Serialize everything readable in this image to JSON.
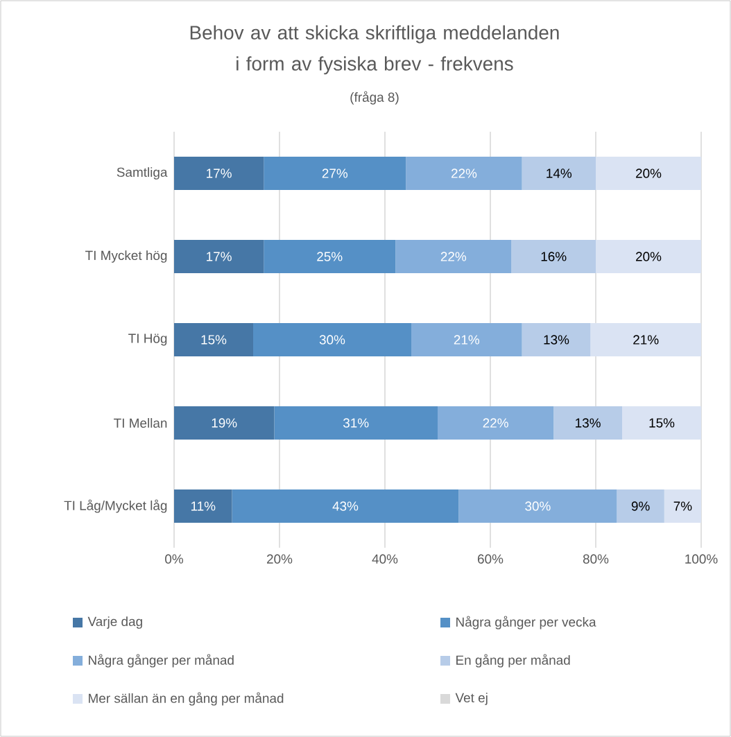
{
  "chart_data": {
    "type": "bar",
    "orientation": "horizontal",
    "stacked": true,
    "title": "Behov av att skicka skriftliga meddelanden i form av fysiska brev - frekvens",
    "subtitle": "(fråga 8)",
    "categories": [
      "Samtliga",
      "TI Mycket hög",
      "TI Hög",
      "TI Mellan",
      "TI Låg/Mycket låg"
    ],
    "series": [
      {
        "name": "Varje dag",
        "color": "#4677a6",
        "values": [
          17,
          17,
          15,
          19,
          11
        ],
        "value_labels": [
          "17%",
          "17%",
          "15%",
          "19%",
          "11%"
        ]
      },
      {
        "name": "Några gånger per vecka",
        "color": "#5590c6",
        "values": [
          27,
          25,
          30,
          31,
          43
        ],
        "value_labels": [
          "27%",
          "25%",
          "30%",
          "31%",
          "43%"
        ]
      },
      {
        "name": "Några gånger per månad",
        "color": "#84aedb",
        "values": [
          22,
          22,
          21,
          22,
          30
        ],
        "value_labels": [
          "22%",
          "22%",
          "21%",
          "22%",
          "30%"
        ]
      },
      {
        "name": "En gång per månad",
        "color": "#b7cce8",
        "values": [
          14,
          16,
          13,
          13,
          9
        ],
        "value_labels": [
          "14%",
          "16%",
          "13%",
          "13%",
          "9%"
        ]
      },
      {
        "name": "Mer sällan än en gång per månad",
        "color": "#dae3f3",
        "values": [
          20,
          20,
          21,
          15,
          7
        ],
        "value_labels": [
          "20%",
          "20%",
          "21%",
          "15%",
          "7%"
        ]
      },
      {
        "name": "Vet ej",
        "color": "#d9d9d9",
        "values": [
          null,
          null,
          null,
          null,
          null
        ]
      }
    ],
    "xlim": [
      0,
      100
    ],
    "xticks": [
      {
        "value": 0,
        "label": "0%"
      },
      {
        "value": 20,
        "label": "20%"
      },
      {
        "value": 40,
        "label": "40%"
      },
      {
        "value": 60,
        "label": "60%"
      },
      {
        "value": 80,
        "label": "80%"
      },
      {
        "value": 100,
        "label": "100%"
      }
    ],
    "grid": "x",
    "legend": "bottom"
  }
}
